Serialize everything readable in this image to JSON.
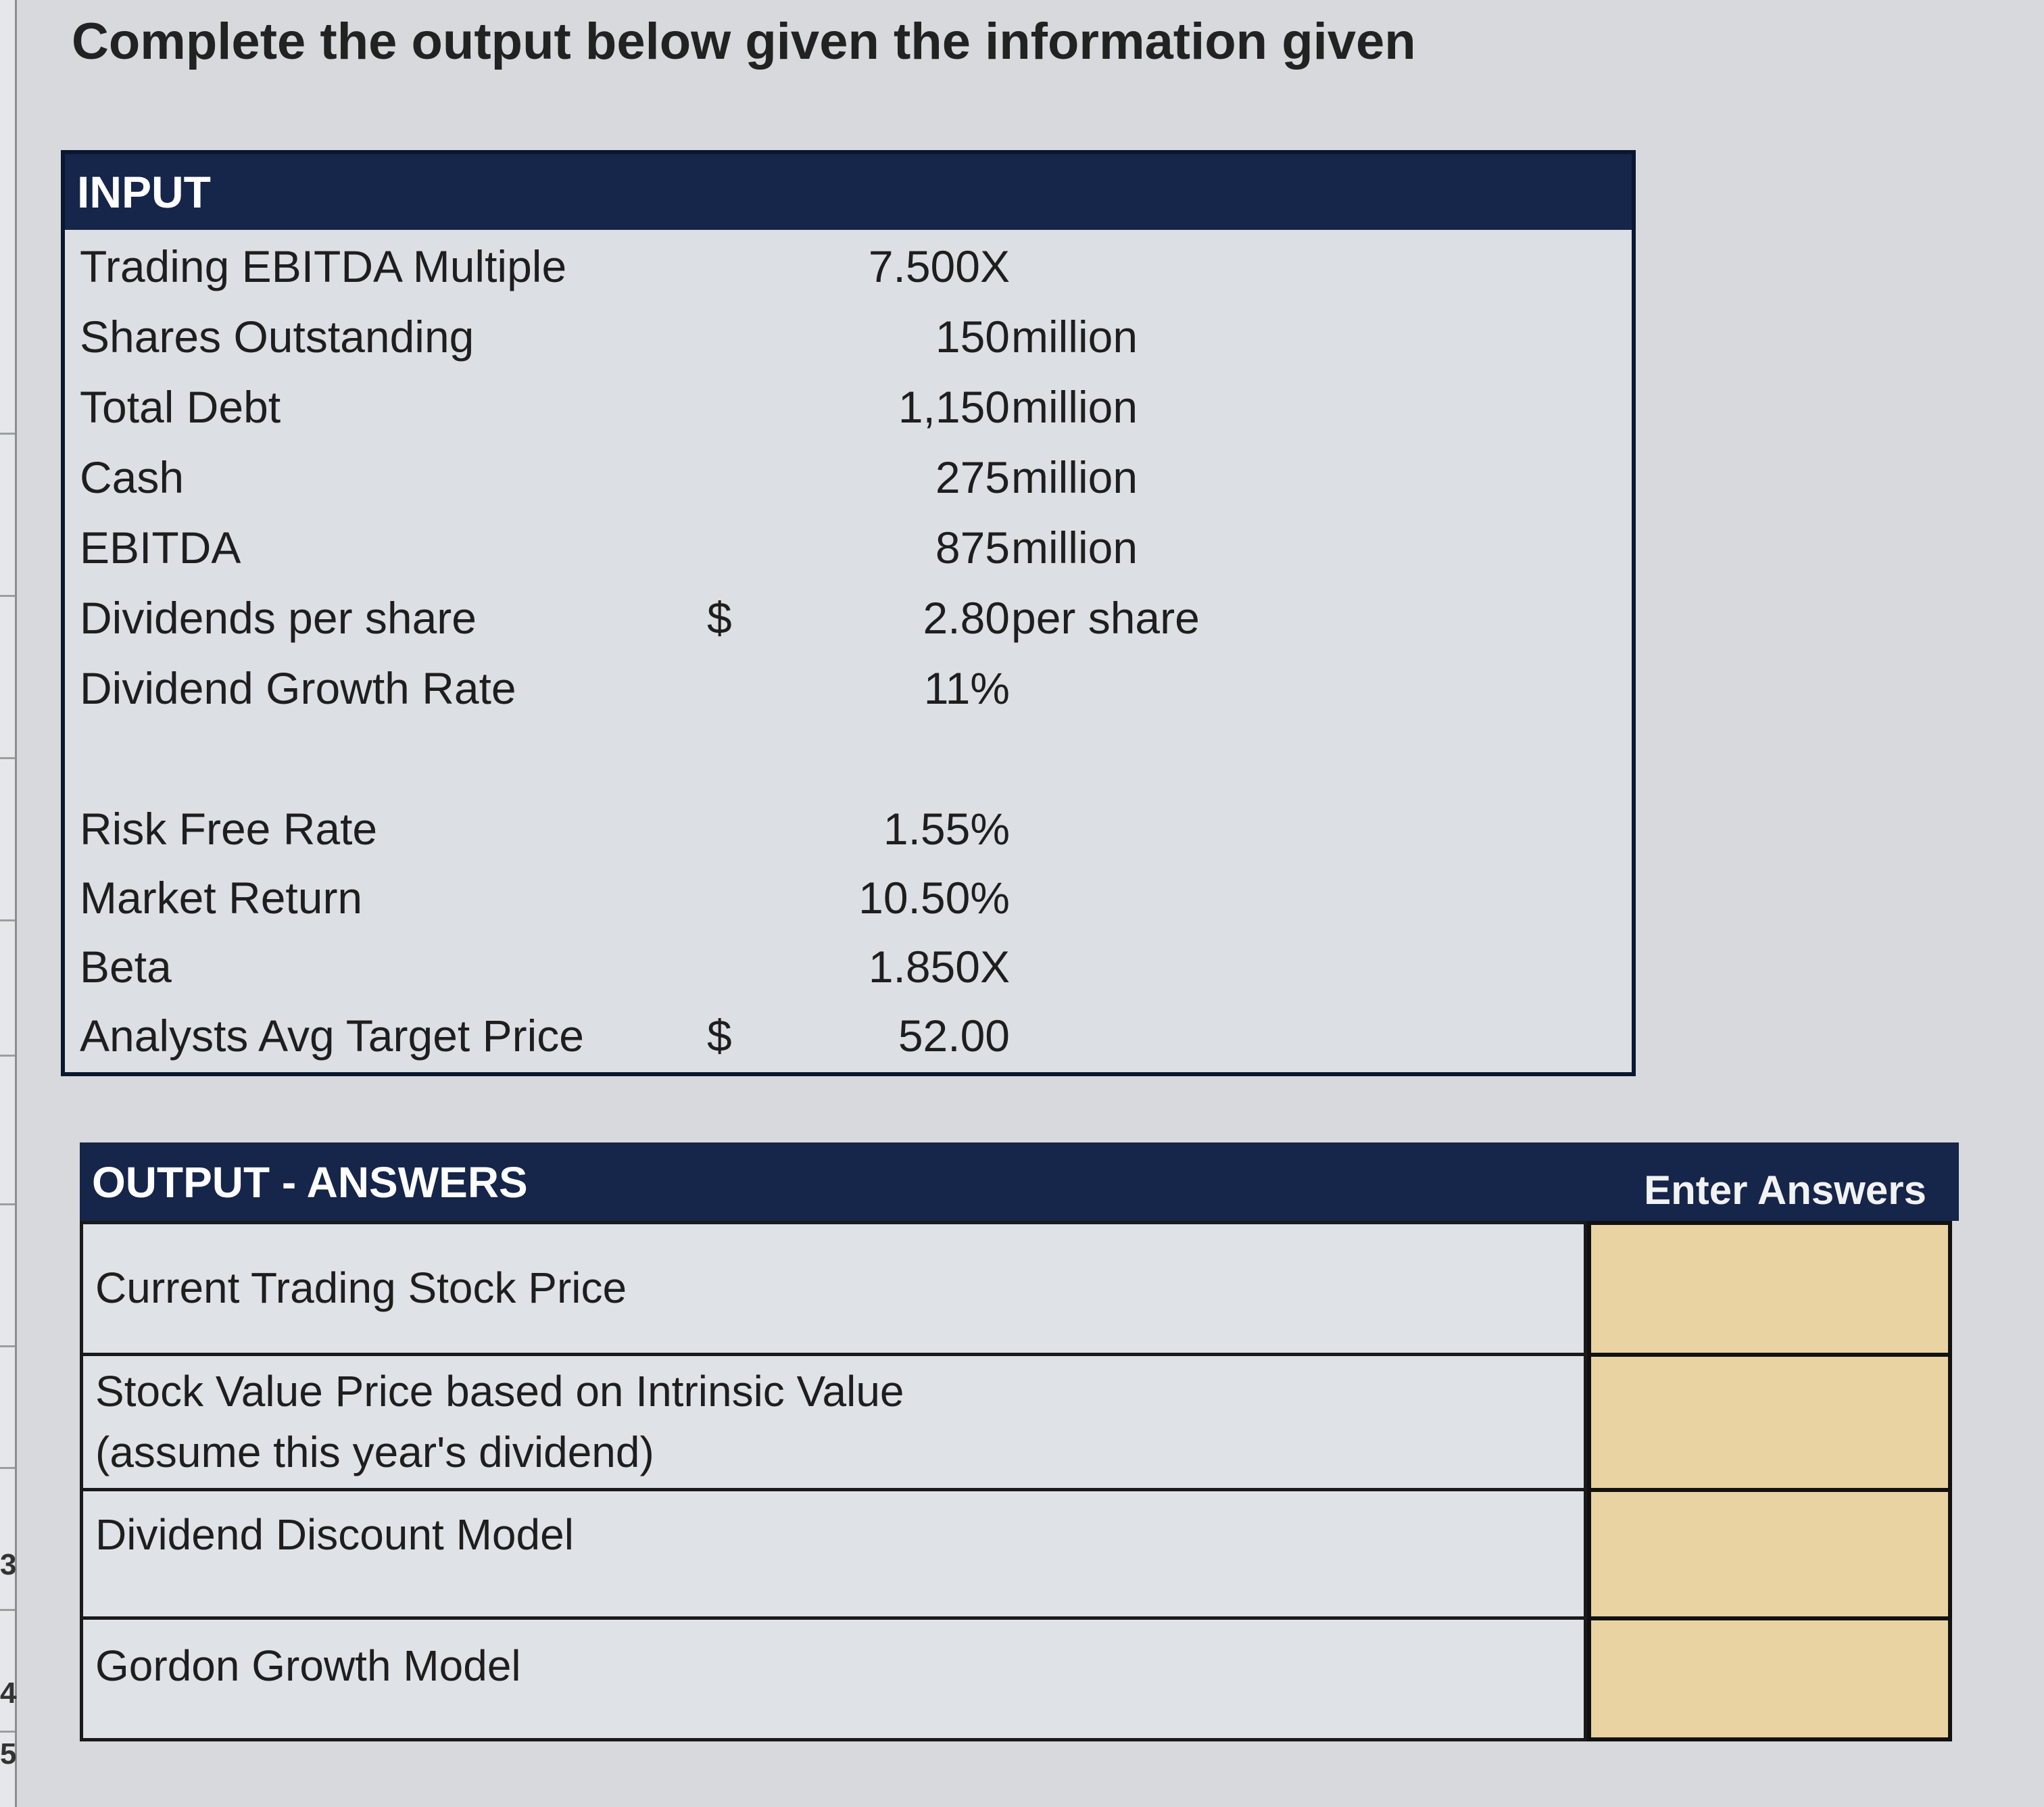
{
  "instruction": "Complete the output below given the information given",
  "row_numbers": [
    "3",
    "4",
    "5"
  ],
  "input": {
    "header": "INPUT",
    "rows": [
      {
        "label": "Trading EBITDA Multiple",
        "dollar": "",
        "value": "7.500X",
        "unit": ""
      },
      {
        "label": "Shares Outstanding",
        "dollar": "",
        "value": "150",
        "unit": "million"
      },
      {
        "label": "Total Debt",
        "dollar": "",
        "value": "1,150",
        "unit": "million"
      },
      {
        "label": "Cash",
        "dollar": "",
        "value": "275",
        "unit": "million"
      },
      {
        "label": "EBITDA",
        "dollar": "",
        "value": "875",
        "unit": "million"
      },
      {
        "label": "Dividends per share",
        "dollar": "$",
        "value": "2.80",
        "unit": "per share"
      },
      {
        "label": "Dividend Growth Rate",
        "dollar": "",
        "value": "11%",
        "unit": ""
      },
      {
        "label": "Risk Free Rate",
        "dollar": "",
        "value": "1.55%",
        "unit": ""
      },
      {
        "label": "Market Return",
        "dollar": "",
        "value": "10.50%",
        "unit": ""
      },
      {
        "label": "Beta",
        "dollar": "",
        "value": "1.850X",
        "unit": ""
      },
      {
        "label": "Analysts Avg Target Price",
        "dollar": "$",
        "value": "52.00",
        "unit": ""
      }
    ]
  },
  "output": {
    "header": "OUTPUT - ANSWERS",
    "answer_column_label": "Enter Answers",
    "answer_fill_color": "#ead3a2",
    "rows": [
      {
        "label": "Current Trading Stock Price",
        "label_line2": "",
        "answer": ""
      },
      {
        "label": "Stock Value Price based on Intrinsic Value",
        "label_line2": "(assume this year's dividend)",
        "answer": ""
      },
      {
        "label": "Dividend Discount Model",
        "label_line2": "",
        "answer": ""
      },
      {
        "label": "Gordon Growth Model",
        "label_line2": "",
        "answer": ""
      }
    ]
  },
  "colors": {
    "header_navy": "#16254a",
    "panel_gray": "#dcdfe3"
  }
}
